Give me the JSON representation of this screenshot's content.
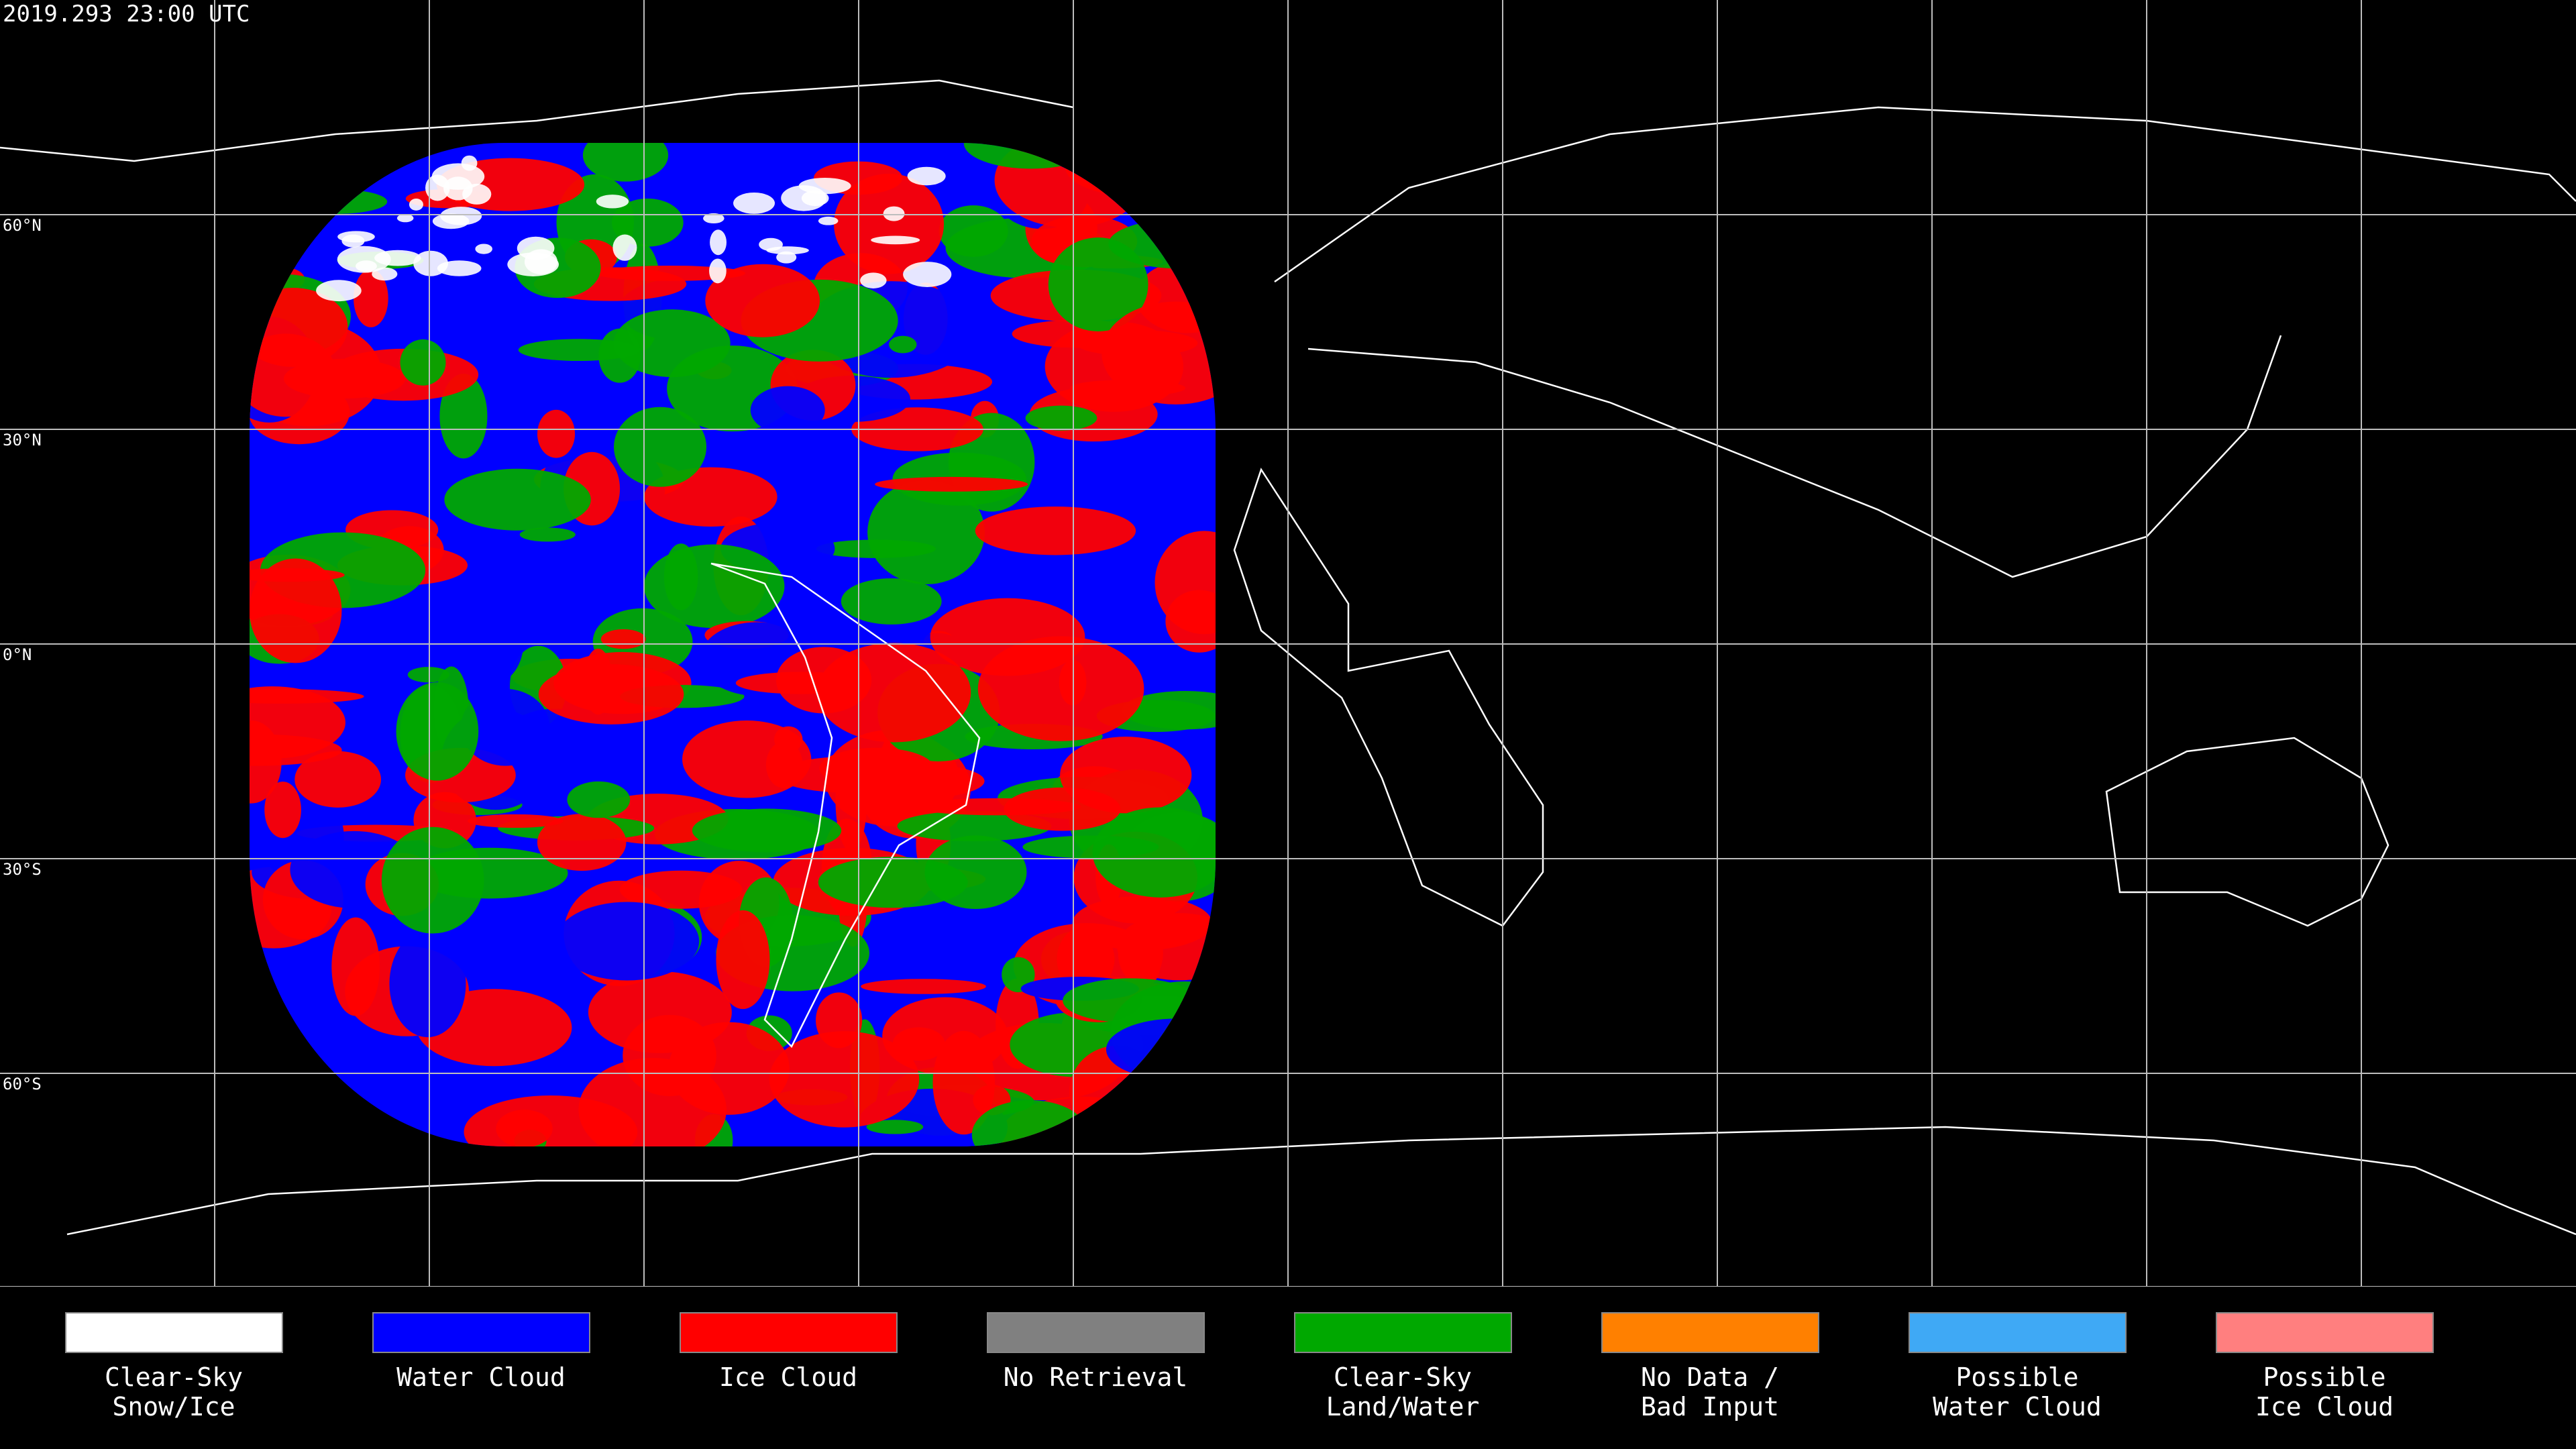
{
  "header": {
    "timestamp": "2019.293 23:00 UTC"
  },
  "map": {
    "lat_labels": [
      "60°N",
      "30°N",
      "0°N",
      "30°S",
      "60°S"
    ]
  },
  "legend": {
    "items": [
      {
        "label": [
          "Clear-Sky",
          "Snow/Ice"
        ],
        "color": "#ffffff"
      },
      {
        "label": [
          "Water Cloud"
        ],
        "color": "#0000ff"
      },
      {
        "label": [
          "Ice Cloud"
        ],
        "color": "#ff0000"
      },
      {
        "label": [
          "No Retrieval"
        ],
        "color": "#808080"
      },
      {
        "label": [
          "Clear-Sky",
          "Land/Water"
        ],
        "color": "#00a800"
      },
      {
        "label": [
          "No Data /",
          "Bad Input"
        ],
        "color": "#ff8000"
      },
      {
        "label": [
          "Possible",
          "Water Cloud"
        ],
        "color": "#3fa9f5"
      },
      {
        "label": [
          "Possible",
          "Ice Cloud"
        ],
        "color": "#ff7f7f"
      }
    ]
  }
}
